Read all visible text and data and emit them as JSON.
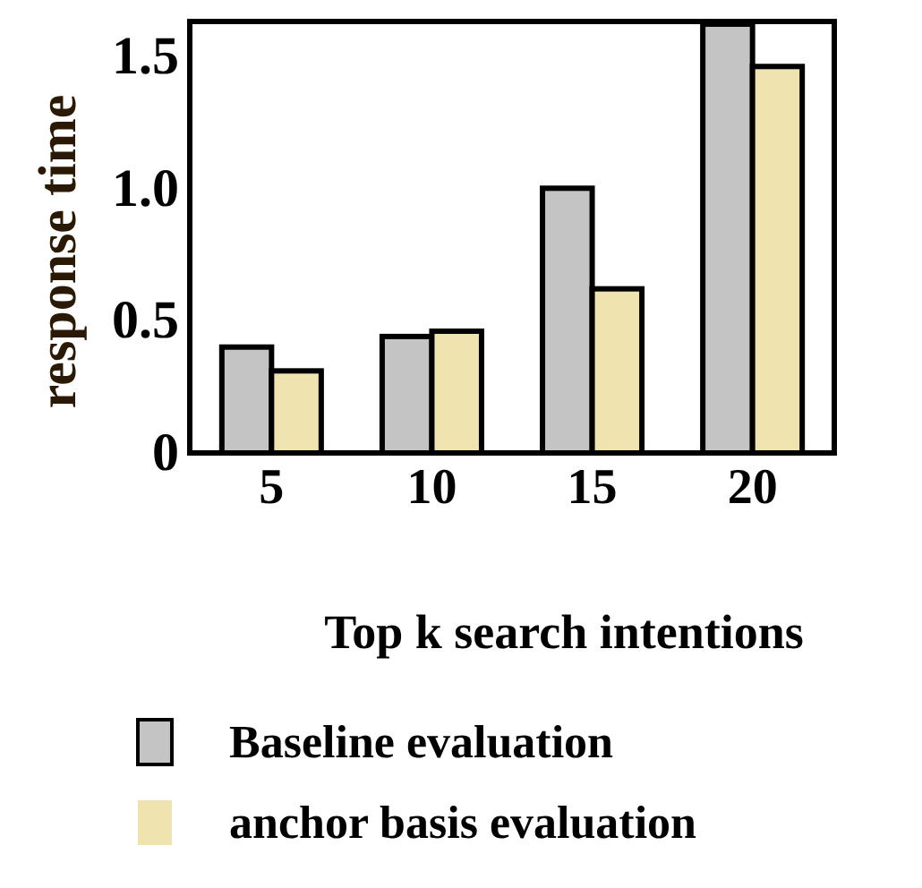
{
  "chart_data": {
    "type": "bar",
    "xlabel": "Top k search intentions",
    "ylabel": "response time",
    "categories": [
      "5",
      "10",
      "15",
      "20"
    ],
    "series": [
      {
        "name": "Baseline evaluation",
        "color": "#c4c4c4",
        "values": [
          0.4,
          0.44,
          1.0,
          1.62
        ]
      },
      {
        "name": "anchor basis evaluation",
        "color": "#efe3b0",
        "values": [
          0.31,
          0.46,
          0.62,
          1.46
        ]
      }
    ],
    "ylim": [
      0,
      1.63
    ],
    "yticks": [
      0,
      0.5,
      {
        "value": 1,
        "label": "1.0"
      },
      1.5
    ],
    "grid": false,
    "legend": "bottom"
  }
}
